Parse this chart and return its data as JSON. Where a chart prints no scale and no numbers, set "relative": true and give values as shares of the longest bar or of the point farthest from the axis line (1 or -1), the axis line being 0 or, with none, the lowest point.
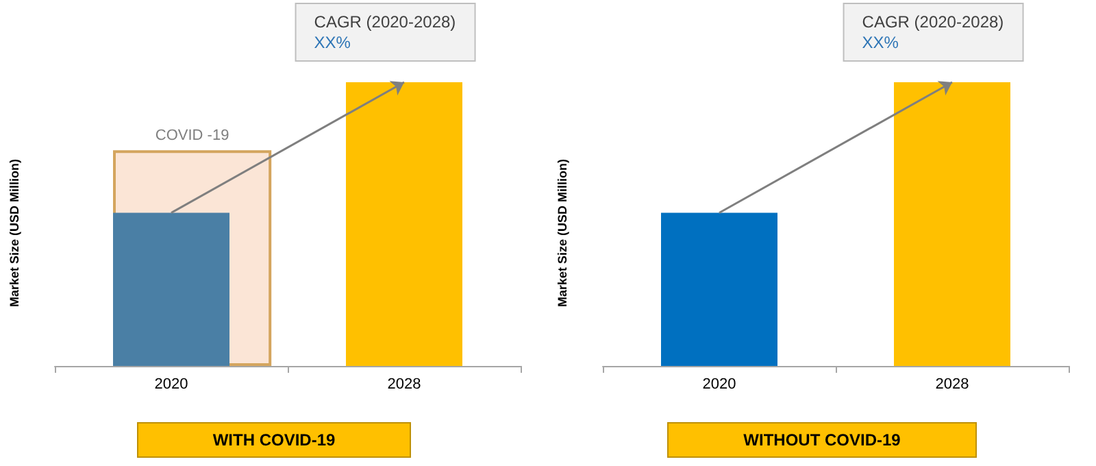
{
  "chart_data": [
    {
      "type": "bar",
      "title": "WITH COVID-19",
      "ylabel": "Market Size (USD Million)",
      "annotations": [
        "CAGR (2020-2028)",
        "XX%"
      ],
      "categories": [
        "2020",
        "2028"
      ],
      "relative": true,
      "series": [
        {
          "name": "COVID -19",
          "color": "#fbe5d6",
          "values": [
            0.76,
            null
          ]
        },
        {
          "colors": [
            "#4a7fa5",
            "#ffc000"
          ],
          "values": [
            0.54,
            1
          ]
        }
      ]
    },
    {
      "type": "bar",
      "title": "WITHOUT COVID-19",
      "ylabel": "Market Size (USD Million)",
      "annotations": [
        "CAGR (2020-2028)",
        "XX%"
      ],
      "categories": [
        "2020",
        "2028"
      ],
      "relative": true,
      "series": [
        {
          "colors": [
            "#0070c0",
            "#ffc000"
          ],
          "values": [
            0.54,
            1
          ]
        }
      ]
    }
  ]
}
